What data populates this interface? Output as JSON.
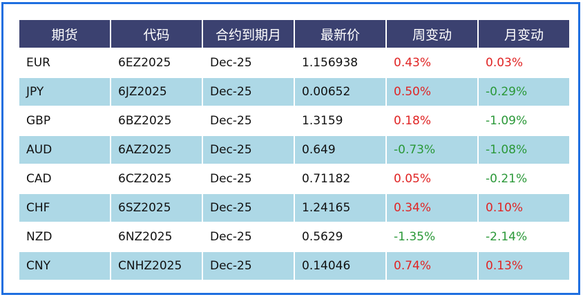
{
  "headers": [
    "期货",
    "代码",
    "合约到期月",
    "最新价",
    "周变动",
    "月变动"
  ],
  "rows": [
    {
      "future": "EUR",
      "code": "6EZ2025",
      "expiry": "Dec-25",
      "price": "1.156938",
      "week": "0.43%",
      "month": "0.03%"
    },
    {
      "future": "JPY",
      "code": "6JZ2025",
      "expiry": "Dec-25",
      "price": "0.00652",
      "week": "0.50%",
      "month": "-0.29%"
    },
    {
      "future": "GBP",
      "code": "6BZ2025",
      "expiry": "Dec-25",
      "price": "1.3159",
      "week": "0.18%",
      "month": "-1.09%"
    },
    {
      "future": "AUD",
      "code": "6AZ2025",
      "expiry": "Dec-25",
      "price": "0.649",
      "week": "-0.73%",
      "month": "-1.08%"
    },
    {
      "future": "CAD",
      "code": "6CZ2025",
      "expiry": "Dec-25",
      "price": "0.71182",
      "week": "0.05%",
      "month": "-0.21%"
    },
    {
      "future": "CHF",
      "code": "6SZ2025",
      "expiry": "Dec-25",
      "price": "1.24165",
      "week": "0.34%",
      "month": "0.10%"
    },
    {
      "future": "NZD",
      "code": "6NZ2025",
      "expiry": "Dec-25",
      "price": "0.5629",
      "week": "-1.35%",
      "month": "-2.14%"
    },
    {
      "future": "CNY",
      "code": "CNHZ2025",
      "expiry": "Dec-25",
      "price": "0.14046",
      "week": "0.74%",
      "month": "0.13%"
    }
  ],
  "colors": {
    "header": "#3b4170",
    "stripe": "#add8e6",
    "positive": "#e02424",
    "negative": "#2a9838",
    "border": "#1f6fe0"
  }
}
